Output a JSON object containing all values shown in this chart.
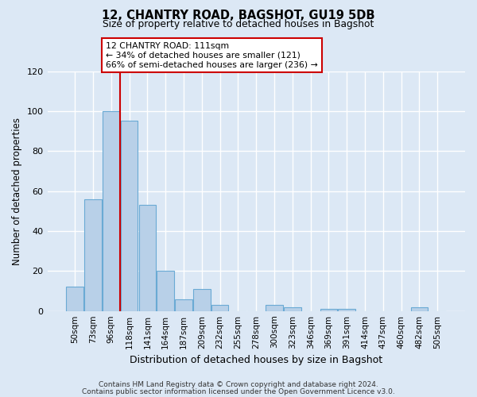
{
  "title": "12, CHANTRY ROAD, BAGSHOT, GU19 5DB",
  "subtitle": "Size of property relative to detached houses in Bagshot",
  "xlabel": "Distribution of detached houses by size in Bagshot",
  "ylabel": "Number of detached properties",
  "bar_labels": [
    "50sqm",
    "73sqm",
    "96sqm",
    "118sqm",
    "141sqm",
    "164sqm",
    "187sqm",
    "209sqm",
    "232sqm",
    "255sqm",
    "278sqm",
    "300sqm",
    "323sqm",
    "346sqm",
    "369sqm",
    "391sqm",
    "414sqm",
    "437sqm",
    "460sqm",
    "482sqm",
    "505sqm"
  ],
  "bar_heights": [
    12,
    56,
    100,
    95,
    53,
    20,
    6,
    11,
    3,
    0,
    0,
    3,
    2,
    0,
    1,
    1,
    0,
    0,
    0,
    2,
    0
  ],
  "bar_color": "#b8d0e8",
  "bar_edge_color": "#6aaad4",
  "ylim": [
    0,
    120
  ],
  "yticks": [
    0,
    20,
    40,
    60,
    80,
    100,
    120
  ],
  "property_line_color": "#cc0000",
  "annotation_text": "12 CHANTRY ROAD: 111sqm\n← 34% of detached houses are smaller (121)\n66% of semi-detached houses are larger (236) →",
  "annotation_box_facecolor": "#ffffff",
  "annotation_box_edgecolor": "#cc0000",
  "footer_line1": "Contains HM Land Registry data © Crown copyright and database right 2024.",
  "footer_line2": "Contains public sector information licensed under the Open Government Licence v3.0.",
  "background_color": "#dce8f5",
  "grid_color": "#ffffff",
  "figsize": [
    6.0,
    5.0
  ],
  "dpi": 100
}
